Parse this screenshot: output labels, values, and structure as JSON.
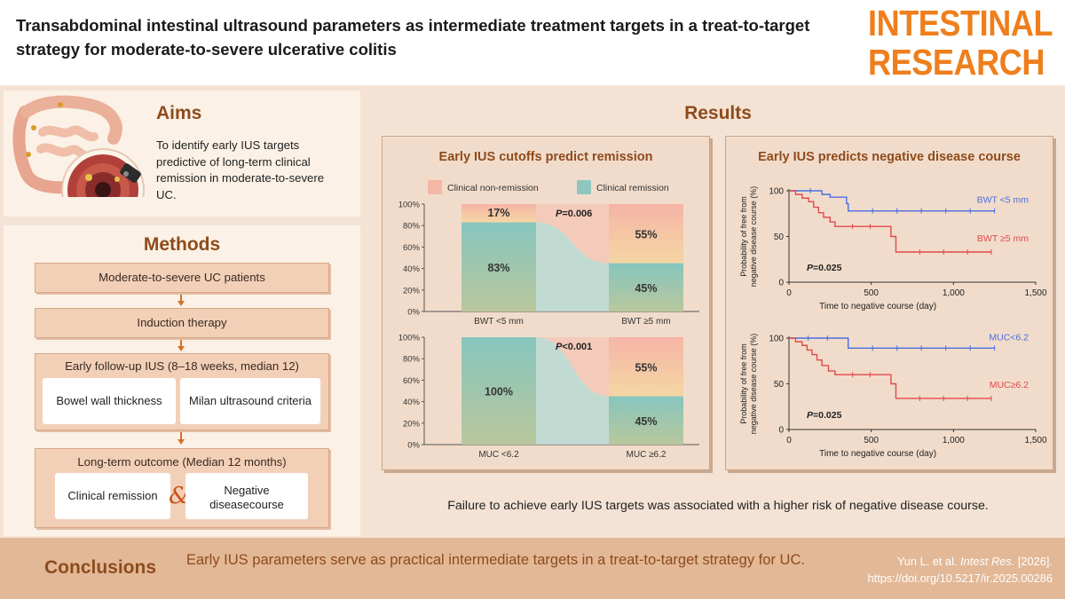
{
  "header": {
    "title": "Transabdominal intestinal ultrasound parameters as intermediate treatment targets in a treat-to-target strategy for moderate-to-severe ulcerative colitis",
    "logo_line1": "INTESTINAL",
    "logo_line2": "RESEARCH"
  },
  "aims": {
    "heading": "Aims",
    "text": "To identify early IUS targets predictive of long-term clinical remission in moderate-to-severe UC."
  },
  "methods": {
    "heading": "Methods",
    "step1": "Moderate-to-severe UC patients",
    "step2": "Induction therapy",
    "step3": "Early follow-up IUS (8–18 weeks, median 12)",
    "step3_a": "Bowel wall thickness",
    "step3_b": "Milan ultrasound criteria",
    "step4": "Long-term outcome (Median 12 months)",
    "step4_a": "Clinical remission",
    "step4_amp": "&",
    "step4_b_line1": "Negative",
    "step4_b_line2": "diseasecourse"
  },
  "results": {
    "heading": "Results",
    "finding": "Failure to achieve early IUS targets was associated with a higher risk of negative disease course."
  },
  "conclusions": {
    "heading": "Conclusions",
    "text": "Early IUS parameters serve as practical intermediate targets in a treat-to-target strategy for UC.",
    "cite_authors": "Yun L. et al. ",
    "cite_journal": "Intest Res.",
    "cite_year": " [2026].",
    "cite_doi": "https://doi.org/10.5217/ir.2025.00286"
  },
  "colors": {
    "accent_orange": "#ee7f1c",
    "heading_brown": "#8e4b1c",
    "non_remission_pink": "#f4b7a6",
    "remission_teal": "#8fc7bf",
    "bwt_lt5_blue": "#4a6ee0",
    "bwt_ge5_red": "#e04a4a"
  },
  "chart_data": [
    {
      "type": "bar",
      "title": "Early IUS cutoffs predict remission",
      "legend": [
        "Clinical non-remission",
        "Clinical remission"
      ],
      "panels": [
        {
          "categories": [
            "BWT <5 mm",
            "BWT ≥5 mm"
          ],
          "series": [
            {
              "name": "Clinical remission",
              "values": [
                83,
                45
              ]
            },
            {
              "name": "Clinical non-remission",
              "values": [
                17,
                55
              ]
            }
          ],
          "labels": {
            "remission": [
              "83%",
              "45%"
            ],
            "non_remission": [
              "17%",
              "55%"
            ]
          },
          "p_label": "P",
          "p_value": "=0.006",
          "ylim": [
            0,
            100
          ],
          "yticks": [
            "0%",
            "20%",
            "40%",
            "60%",
            "80%",
            "100%"
          ]
        },
        {
          "categories": [
            "MUC <6.2",
            "MUC ≥6.2"
          ],
          "series": [
            {
              "name": "Clinical remission",
              "values": [
                100,
                45
              ]
            },
            {
              "name": "Clinical non-remission",
              "values": [
                0,
                55
              ]
            }
          ],
          "labels": {
            "remission": [
              "100%",
              "45%"
            ],
            "non_remission": [
              "",
              "55%"
            ]
          },
          "p_label": "P",
          "p_value": "<0.001",
          "ylim": [
            0,
            100
          ],
          "yticks": [
            "0%",
            "20%",
            "40%",
            "60%",
            "80%",
            "100%"
          ]
        }
      ]
    },
    {
      "type": "line",
      "title": "Early IUS predicts negative disease course",
      "panels": [
        {
          "ylabel_line1": "Probability of free from",
          "ylabel_line2": "negative disease course (%)",
          "xlabel": "Time to negative course (day)",
          "xlim": [
            0,
            1500
          ],
          "ylim": [
            0,
            100
          ],
          "xticks": [
            "0",
            "500",
            "1,000",
            "1,500"
          ],
          "yticks": [
            "0",
            "50",
            "100"
          ],
          "p_label": "P",
          "p_value": "=0.025",
          "series": [
            {
              "name": "BWT <5 mm",
              "x": [
                0,
                60,
                200,
                250,
                330,
                350,
                360,
                1250
              ],
              "y": [
                100,
                100,
                96,
                93,
                93,
                86,
                78,
                78
              ]
            },
            {
              "name": "BWT ≥5 mm",
              "x": [
                0,
                40,
                80,
                120,
                150,
                180,
                210,
                250,
                280,
                600,
                620,
                650,
                1230
              ],
              "y": [
                100,
                96,
                92,
                88,
                82,
                76,
                71,
                66,
                61,
                61,
                50,
                33,
                33
              ]
            }
          ]
        },
        {
          "ylabel_line1": "Probability of free from",
          "ylabel_line2": "negative disease course (%)",
          "xlabel": "Time to negative course (day)",
          "xlim": [
            0,
            1500
          ],
          "ylim": [
            0,
            100
          ],
          "xticks": [
            "0",
            "500",
            "1,000",
            "1,500"
          ],
          "yticks": [
            "0",
            "50",
            "100"
          ],
          "p_label": "P",
          "p_value": "=0.025",
          "series": [
            {
              "name": "MUC<6.2",
              "x": [
                0,
                350,
                360,
                1250
              ],
              "y": [
                100,
                100,
                89,
                89
              ]
            },
            {
              "name": "MUC≥6.2",
              "x": [
                0,
                40,
                80,
                110,
                140,
                170,
                200,
                240,
                280,
                600,
                620,
                650,
                1230
              ],
              "y": [
                100,
                96,
                92,
                87,
                82,
                76,
                70,
                64,
                60,
                60,
                50,
                34,
                34
              ]
            }
          ]
        }
      ]
    }
  ]
}
